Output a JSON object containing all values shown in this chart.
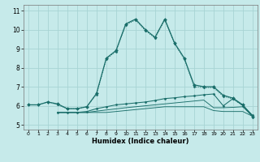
{
  "xlabel": "Humidex (Indice chaleur)",
  "bg_color": "#c6eaea",
  "grid_color": "#a8d4d4",
  "line_color": "#1a6e6a",
  "xlim": [
    -0.5,
    23.5
  ],
  "ylim": [
    4.75,
    11.3
  ],
  "xticks": [
    0,
    1,
    2,
    3,
    4,
    5,
    6,
    7,
    8,
    9,
    10,
    11,
    12,
    13,
    14,
    15,
    16,
    17,
    18,
    19,
    20,
    21,
    22,
    23
  ],
  "yticks": [
    5,
    6,
    7,
    8,
    9,
    10,
    11
  ],
  "curve1_x": [
    0,
    1,
    2,
    3,
    4,
    5,
    6,
    7,
    8,
    9,
    10,
    11,
    12,
    13,
    14,
    15,
    16,
    17,
    18,
    19,
    20,
    21,
    22,
    23
  ],
  "curve1_y": [
    6.05,
    6.05,
    6.2,
    6.1,
    5.85,
    5.85,
    5.95,
    6.65,
    8.5,
    8.9,
    10.3,
    10.55,
    10.0,
    9.6,
    10.55,
    9.3,
    8.5,
    7.1,
    7.0,
    7.0,
    6.55,
    6.4,
    6.05,
    5.45
  ],
  "curve2_x": [
    0,
    1,
    2,
    3,
    4,
    5,
    6,
    7,
    8,
    9,
    10,
    11,
    12,
    13,
    14,
    15,
    16,
    17,
    18,
    19,
    20,
    21,
    22,
    23
  ],
  "curve2_y": [
    6.05,
    6.05,
    6.2,
    6.05,
    5.85,
    5.85,
    5.95,
    6.6,
    8.45,
    8.85,
    10.25,
    10.5,
    9.95,
    9.55,
    10.5,
    9.25,
    8.45,
    7.0,
    6.95,
    6.95,
    6.5,
    6.35,
    6.0,
    5.4
  ],
  "curve3_x": [
    3,
    4,
    5,
    6,
    7,
    8,
    9,
    10,
    11,
    12,
    13,
    14,
    15,
    16,
    17,
    18,
    19,
    20,
    21,
    22,
    23
  ],
  "curve3_y": [
    5.65,
    5.65,
    5.65,
    5.7,
    5.85,
    5.95,
    6.05,
    6.1,
    6.15,
    6.2,
    6.28,
    6.38,
    6.42,
    6.48,
    6.52,
    6.58,
    6.62,
    6.0,
    6.38,
    6.02,
    5.5
  ],
  "curve4_x": [
    3,
    4,
    5,
    6,
    7,
    8,
    9,
    10,
    11,
    12,
    13,
    14,
    15,
    16,
    17,
    18,
    19,
    20,
    21,
    22,
    23
  ],
  "curve4_y": [
    5.65,
    5.65,
    5.65,
    5.65,
    5.72,
    5.78,
    5.84,
    5.9,
    5.95,
    6.0,
    6.05,
    6.1,
    6.15,
    6.2,
    6.25,
    6.3,
    5.9,
    5.9,
    5.92,
    5.95,
    5.45
  ],
  "curve5_x": [
    3,
    4,
    5,
    6,
    7,
    8,
    9,
    10,
    11,
    12,
    13,
    14,
    15,
    16,
    17,
    18,
    19,
    20,
    21,
    22,
    23
  ],
  "curve5_y": [
    5.65,
    5.65,
    5.65,
    5.65,
    5.65,
    5.65,
    5.7,
    5.75,
    5.8,
    5.85,
    5.9,
    5.95,
    5.95,
    5.95,
    5.95,
    5.95,
    5.75,
    5.7,
    5.7,
    5.7,
    5.45
  ]
}
